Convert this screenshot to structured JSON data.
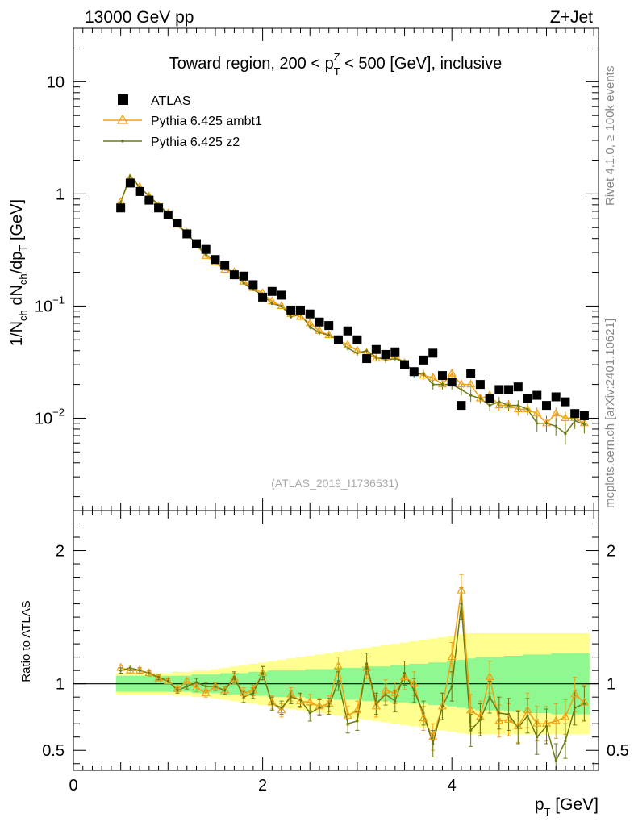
{
  "header": {
    "left": "13000 GeV pp",
    "right": "Z+Jet"
  },
  "side_labels": {
    "rivet": "Rivet 4.1.0, ≥ 100k events",
    "mcplots": "mcplots.cern.ch [arXiv:2401.10621]"
  },
  "colors": {
    "atlas": "#000000",
    "ambt1": "#f0a010",
    "z2": "#6b7a12",
    "band_inner": "#90f890",
    "band_outer": "#ffff90"
  },
  "chart_data": [
    {
      "type": "line",
      "name": "main",
      "title": "Toward region, 200 < p_T^Z < 500 [GeV], inclusive",
      "title_parts": {
        "a": "Toward region, 200 < p",
        "sub": "T",
        "sup": "Z",
        "b": " < 500 [GeV], inclusive"
      },
      "ylabel": "1/N_ch dN_ch/dp_T [GeV]",
      "ylabel_parts": {
        "a": "1/N",
        "s1": "ch",
        "b": " dN",
        "s2": "ch",
        "c": "/dp",
        "s3": "T",
        "d": " [GeV]"
      },
      "yscale": "log",
      "ylim": [
        0.0015,
        30
      ],
      "xlim": [
        0,
        5.55
      ],
      "y_ticks": [
        {
          "value": 10,
          "label": "10"
        },
        {
          "value": 1,
          "label": "1"
        },
        {
          "value": 0.1,
          "label": "10",
          "exp": "−1"
        },
        {
          "value": 0.01,
          "label": "10",
          "exp": "−2"
        }
      ],
      "analysis_label": "(ATLAS_2019_I1736531)",
      "legend": [
        "ATLAS",
        "Pythia 6.425 ambt1",
        "Pythia 6.425 z2"
      ],
      "legend_position": "top-left",
      "x": [
        0.5,
        0.6,
        0.7,
        0.8,
        0.9,
        1.0,
        1.1,
        1.2,
        1.3,
        1.4,
        1.5,
        1.6,
        1.7,
        1.8,
        1.9,
        2.0,
        2.1,
        2.2,
        2.3,
        2.4,
        2.5,
        2.6,
        2.7,
        2.8,
        2.9,
        3.0,
        3.1,
        3.2,
        3.3,
        3.4,
        3.5,
        3.6,
        3.7,
        3.8,
        3.9,
        4.0,
        4.1,
        4.2,
        4.3,
        4.4,
        4.5,
        4.6,
        4.7,
        4.8,
        4.9,
        5.0,
        5.1,
        5.2,
        5.3,
        5.4
      ],
      "series": [
        {
          "name": "ATLAS",
          "values": [
            0.75,
            1.25,
            1.05,
            0.88,
            0.75,
            0.65,
            0.55,
            0.44,
            0.36,
            0.32,
            0.26,
            0.23,
            0.19,
            0.185,
            0.155,
            0.12,
            0.135,
            0.125,
            0.092,
            0.092,
            0.085,
            0.072,
            0.067,
            0.05,
            0.06,
            0.05,
            0.034,
            0.041,
            0.037,
            0.039,
            0.03,
            0.026,
            0.033,
            0.038,
            0.024,
            0.021,
            0.013,
            0.025,
            0.02,
            0.015,
            0.018,
            0.018,
            0.019,
            0.015,
            0.016,
            0.013,
            0.0155,
            0.014,
            0.011,
            0.0105
          ]
        },
        {
          "name": "Pythia 6.425 ambt1",
          "values": [
            0.85,
            1.38,
            1.15,
            0.95,
            0.78,
            0.67,
            0.53,
            0.45,
            0.35,
            0.28,
            0.245,
            0.21,
            0.2,
            0.165,
            0.145,
            0.13,
            0.11,
            0.1,
            0.085,
            0.08,
            0.07,
            0.06,
            0.055,
            0.05,
            0.045,
            0.04,
            0.038,
            0.034,
            0.035,
            0.036,
            0.031,
            0.026,
            0.024,
            0.023,
            0.02,
            0.025,
            0.02,
            0.02,
            0.015,
            0.016,
            0.013,
            0.013,
            0.012,
            0.012,
            0.011,
            0.009,
            0.011,
            0.01,
            0.01,
            0.009
          ],
          "errors": [
            0.03,
            0.04,
            0.03,
            0.02,
            0.02,
            0.02,
            0.01,
            0.01,
            0.008,
            0.007,
            0.006,
            0.005,
            0.005,
            0.004,
            0.004,
            0.004,
            0.003,
            0.003,
            0.003,
            0.003,
            0.003,
            0.003,
            0.003,
            0.003,
            0.002,
            0.002,
            0.002,
            0.002,
            0.002,
            0.002,
            0.002,
            0.002,
            0.002,
            0.002,
            0.002,
            0.002,
            0.002,
            0.002,
            0.0015,
            0.0015,
            0.0015,
            0.0015,
            0.0015,
            0.0015,
            0.0015,
            0.0015,
            0.0015,
            0.0015,
            0.0015,
            0.0015
          ]
        },
        {
          "name": "Pythia 6.425 z2",
          "values": [
            0.84,
            1.45,
            1.15,
            0.96,
            0.8,
            0.67,
            0.52,
            0.45,
            0.35,
            0.29,
            0.25,
            0.215,
            0.2,
            0.16,
            0.14,
            0.125,
            0.105,
            0.1,
            0.08,
            0.085,
            0.065,
            0.058,
            0.055,
            0.05,
            0.042,
            0.038,
            0.04,
            0.035,
            0.033,
            0.034,
            0.032,
            0.025,
            0.025,
            0.02,
            0.02,
            0.02,
            0.018,
            0.016,
            0.015,
            0.013,
            0.014,
            0.013,
            0.013,
            0.012,
            0.009,
            0.009,
            0.0085,
            0.0073,
            0.0095,
            0.0088
          ],
          "errors": [
            0.03,
            0.04,
            0.03,
            0.02,
            0.02,
            0.02,
            0.01,
            0.01,
            0.008,
            0.007,
            0.006,
            0.005,
            0.005,
            0.004,
            0.004,
            0.004,
            0.003,
            0.003,
            0.003,
            0.003,
            0.003,
            0.003,
            0.003,
            0.003,
            0.002,
            0.002,
            0.002,
            0.002,
            0.002,
            0.002,
            0.002,
            0.002,
            0.002,
            0.002,
            0.002,
            0.002,
            0.002,
            0.002,
            0.0015,
            0.0015,
            0.0015,
            0.0015,
            0.0015,
            0.0015,
            0.0015,
            0.0015,
            0.0015,
            0.0015,
            0.0015,
            0.0015
          ]
        }
      ]
    },
    {
      "type": "line",
      "name": "ratio",
      "xlabel": "p_T [GeV]",
      "xlabel_parts": {
        "a": "p",
        "sub": "T",
        "b": " [GeV]"
      },
      "ylabel": "Ratio to ATLAS",
      "ylim": [
        0.35,
        2.3
      ],
      "xlim": [
        0,
        5.55
      ],
      "x_ticks": [
        {
          "value": 0,
          "label": "0"
        },
        {
          "value": 2,
          "label": "2"
        },
        {
          "value": 4,
          "label": "4"
        }
      ],
      "y_ticks": [
        {
          "value": 2,
          "label": "2"
        },
        {
          "value": 1,
          "label": "1"
        },
        {
          "value": 0.5,
          "label": "0.5"
        }
      ],
      "x": [
        0.5,
        0.6,
        0.7,
        0.8,
        0.9,
        1.0,
        1.1,
        1.2,
        1.3,
        1.4,
        1.5,
        1.6,
        1.7,
        1.8,
        1.9,
        2.0,
        2.1,
        2.2,
        2.3,
        2.4,
        2.5,
        2.6,
        2.7,
        2.8,
        2.9,
        3.0,
        3.1,
        3.2,
        3.3,
        3.4,
        3.5,
        3.6,
        3.7,
        3.8,
        3.9,
        4.0,
        4.1,
        4.2,
        4.3,
        4.4,
        4.5,
        4.6,
        4.7,
        4.8,
        4.9,
        5.0,
        5.1,
        5.2,
        5.3,
        5.4
      ],
      "band_inner": [
        0.06,
        0.06,
        0.06,
        0.06,
        0.06,
        0.06,
        0.06,
        0.06,
        0.07,
        0.07,
        0.07,
        0.08,
        0.08,
        0.08,
        0.09,
        0.09,
        0.1,
        0.1,
        0.1,
        0.1,
        0.11,
        0.11,
        0.11,
        0.12,
        0.12,
        0.12,
        0.13,
        0.13,
        0.13,
        0.14,
        0.14,
        0.15,
        0.15,
        0.16,
        0.16,
        0.17,
        0.18,
        0.19,
        0.2,
        0.2,
        0.2,
        0.21,
        0.21,
        0.22,
        0.22,
        0.22,
        0.23,
        0.23,
        0.23,
        0.23
      ],
      "band_outer": [
        0.08,
        0.08,
        0.08,
        0.08,
        0.08,
        0.08,
        0.09,
        0.09,
        0.1,
        0.1,
        0.11,
        0.12,
        0.13,
        0.14,
        0.15,
        0.16,
        0.17,
        0.18,
        0.19,
        0.2,
        0.21,
        0.22,
        0.23,
        0.24,
        0.25,
        0.26,
        0.27,
        0.28,
        0.29,
        0.3,
        0.31,
        0.32,
        0.33,
        0.34,
        0.35,
        0.36,
        0.37,
        0.38,
        0.38,
        0.38,
        0.38,
        0.38,
        0.38,
        0.38,
        0.38,
        0.38,
        0.38,
        0.38,
        0.38,
        0.38
      ],
      "series": [
        {
          "name": "Pythia 6.425 ambt1",
          "values": [
            1.12,
            1.1,
            1.1,
            1.08,
            1.04,
            1.02,
            0.96,
            1.02,
            0.97,
            0.93,
            0.98,
            0.95,
            1.04,
            0.93,
            0.95,
            1.08,
            0.86,
            0.8,
            0.92,
            0.87,
            0.86,
            0.83,
            0.85,
            1.13,
            0.76,
            0.8,
            1.12,
            0.83,
            0.95,
            0.93,
            1.05,
            1.0,
            0.74,
            0.6,
            0.83,
            1.2,
            1.7,
            0.8,
            0.75,
            1.05,
            0.72,
            0.73,
            0.68,
            0.8,
            0.7,
            0.7,
            0.72,
            0.75,
            0.92,
            0.86
          ],
          "errors": [
            0.02,
            0.02,
            0.02,
            0.02,
            0.02,
            0.02,
            0.02,
            0.02,
            0.03,
            0.03,
            0.03,
            0.03,
            0.04,
            0.04,
            0.04,
            0.05,
            0.05,
            0.05,
            0.05,
            0.05,
            0.06,
            0.06,
            0.06,
            0.07,
            0.07,
            0.07,
            0.08,
            0.08,
            0.08,
            0.08,
            0.09,
            0.09,
            0.09,
            0.1,
            0.1,
            0.11,
            0.12,
            0.12,
            0.12,
            0.12,
            0.12,
            0.12,
            0.12,
            0.13,
            0.13,
            0.13,
            0.13,
            0.13,
            0.13,
            0.13
          ]
        },
        {
          "name": "Pythia 6.425 z2",
          "values": [
            1.1,
            1.12,
            1.1,
            1.08,
            1.05,
            1.02,
            0.95,
            0.98,
            1.01,
            0.98,
            0.98,
            0.95,
            1.05,
            0.9,
            0.93,
            1.08,
            0.85,
            0.82,
            0.9,
            0.88,
            0.78,
            0.82,
            0.83,
            1.02,
            0.7,
            0.72,
            1.15,
            0.85,
            0.92,
            0.87,
            1.08,
            0.95,
            0.78,
            0.55,
            0.83,
            0.98,
            1.6,
            0.65,
            0.73,
            0.9,
            0.78,
            0.77,
            0.67,
            0.76,
            0.6,
            0.68,
            0.42,
            0.57,
            0.82,
            0.85
          ],
          "errors": [
            0.02,
            0.02,
            0.02,
            0.02,
            0.02,
            0.02,
            0.02,
            0.02,
            0.03,
            0.03,
            0.03,
            0.03,
            0.04,
            0.04,
            0.04,
            0.05,
            0.05,
            0.05,
            0.05,
            0.05,
            0.06,
            0.06,
            0.06,
            0.07,
            0.07,
            0.07,
            0.08,
            0.08,
            0.08,
            0.08,
            0.09,
            0.09,
            0.09,
            0.1,
            0.1,
            0.11,
            0.12,
            0.12,
            0.12,
            0.12,
            0.12,
            0.12,
            0.12,
            0.13,
            0.13,
            0.13,
            0.13,
            0.13,
            0.13,
            0.13
          ]
        }
      ]
    }
  ]
}
